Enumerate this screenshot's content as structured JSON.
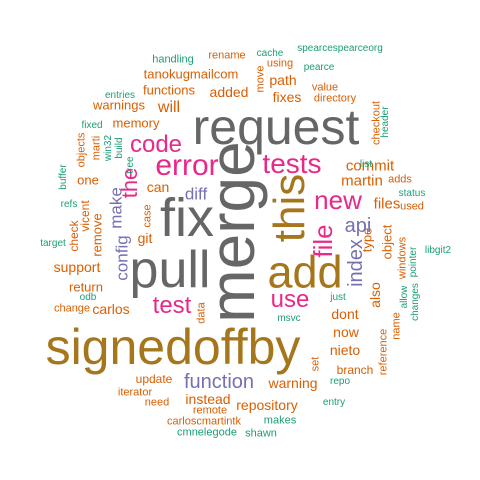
{
  "palette": {
    "green": "#1b9e77",
    "orange": "#d95f02",
    "purple": "#7570b3",
    "pink": "#e7298a",
    "olive": "#66a61e",
    "gold": "#a6761d",
    "gray": "#666666"
  },
  "words": [
    {
      "text": "merge",
      "color": "gray"
    },
    {
      "text": "request",
      "color": "gray"
    },
    {
      "text": "fix",
      "color": "gray"
    },
    {
      "text": "pull",
      "color": "gray"
    },
    {
      "text": "signedoffby",
      "color": "gold"
    },
    {
      "text": "add",
      "color": "gold"
    },
    {
      "text": "this",
      "color": "gold"
    },
    {
      "text": "error",
      "color": "pink"
    },
    {
      "text": "code",
      "color": "pink"
    },
    {
      "text": "tests",
      "color": "pink"
    },
    {
      "text": "test",
      "color": "pink"
    },
    {
      "text": "the",
      "color": "pink"
    },
    {
      "text": "file",
      "color": "pink"
    },
    {
      "text": "new",
      "color": "pink"
    },
    {
      "text": "use",
      "color": "pink"
    },
    {
      "text": "function",
      "color": "purple"
    },
    {
      "text": "diff",
      "color": "purple"
    },
    {
      "text": "api",
      "color": "purple"
    },
    {
      "text": "index",
      "color": "purple"
    },
    {
      "text": "config",
      "color": "purple"
    },
    {
      "text": "make",
      "color": "purple"
    },
    {
      "text": "tanokugmailcom",
      "color": "orange"
    },
    {
      "text": "functions",
      "color": "orange"
    },
    {
      "text": "added",
      "color": "orange"
    },
    {
      "text": "path",
      "color": "orange"
    },
    {
      "text": "fixes",
      "color": "orange"
    },
    {
      "text": "will",
      "color": "orange"
    },
    {
      "text": "memory",
      "color": "orange"
    },
    {
      "text": "warnings",
      "color": "orange"
    },
    {
      "text": "rename",
      "color": "orange"
    },
    {
      "text": "using",
      "color": "orange"
    },
    {
      "text": "move",
      "color": "orange"
    },
    {
      "text": "value",
      "color": "orange"
    },
    {
      "text": "directory",
      "color": "orange"
    },
    {
      "text": "commit",
      "color": "orange"
    },
    {
      "text": "martin",
      "color": "orange"
    },
    {
      "text": "files",
      "color": "orange"
    },
    {
      "text": "can",
      "color": "orange"
    },
    {
      "text": "git",
      "color": "orange"
    },
    {
      "text": "support",
      "color": "orange"
    },
    {
      "text": "return",
      "color": "orange"
    },
    {
      "text": "remove",
      "color": "orange"
    },
    {
      "text": "check",
      "color": "orange"
    },
    {
      "text": "vicent",
      "color": "orange"
    },
    {
      "text": "one",
      "color": "orange"
    },
    {
      "text": "carlos",
      "color": "orange"
    },
    {
      "text": "object",
      "color": "orange"
    },
    {
      "text": "type",
      "color": "orange"
    },
    {
      "text": "dont",
      "color": "orange"
    },
    {
      "text": "now",
      "color": "orange"
    },
    {
      "text": "nieto",
      "color": "orange"
    },
    {
      "text": "also",
      "color": "orange"
    },
    {
      "text": "warning",
      "color": "orange"
    },
    {
      "text": "branch",
      "color": "orange"
    },
    {
      "text": "repository",
      "color": "orange"
    },
    {
      "text": "instead",
      "color": "orange"
    },
    {
      "text": "update",
      "color": "orange"
    },
    {
      "text": "reference",
      "color": "orange"
    },
    {
      "text": "windows",
      "color": "orange"
    },
    {
      "text": "name",
      "color": "orange"
    },
    {
      "text": "used",
      "color": "orange"
    },
    {
      "text": "adds",
      "color": "orange"
    },
    {
      "text": "checkout",
      "color": "orange"
    },
    {
      "text": "marti",
      "color": "orange"
    },
    {
      "text": "objects",
      "color": "orange"
    },
    {
      "text": "change",
      "color": "orange"
    },
    {
      "text": "iterator",
      "color": "orange"
    },
    {
      "text": "need",
      "color": "orange"
    },
    {
      "text": "remote",
      "color": "orange"
    },
    {
      "text": "carloscmartintk",
      "color": "orange"
    },
    {
      "text": "set",
      "color": "orange"
    },
    {
      "text": "data",
      "color": "orange"
    },
    {
      "text": "case",
      "color": "orange"
    },
    {
      "text": "cache",
      "color": "green"
    },
    {
      "text": "spearcespearceorg",
      "color": "green"
    },
    {
      "text": "handling",
      "color": "green"
    },
    {
      "text": "pearce",
      "color": "green"
    },
    {
      "text": "entries",
      "color": "green"
    },
    {
      "text": "fixed",
      "color": "green"
    },
    {
      "text": "build",
      "color": "green"
    },
    {
      "text": "win32",
      "color": "green"
    },
    {
      "text": "tree",
      "color": "green"
    },
    {
      "text": "buffer",
      "color": "green"
    },
    {
      "text": "refs",
      "color": "green"
    },
    {
      "text": "target",
      "color": "green"
    },
    {
      "text": "odb",
      "color": "green"
    },
    {
      "text": "list",
      "color": "green"
    },
    {
      "text": "header",
      "color": "green"
    },
    {
      "text": "status",
      "color": "green"
    },
    {
      "text": "libgit2",
      "color": "green"
    },
    {
      "text": "pointer",
      "color": "green"
    },
    {
      "text": "allow",
      "color": "green"
    },
    {
      "text": "changes",
      "color": "green"
    },
    {
      "text": "just",
      "color": "green"
    },
    {
      "text": "msvc",
      "color": "green"
    },
    {
      "text": "repo",
      "color": "green"
    },
    {
      "text": "entry",
      "color": "green"
    },
    {
      "text": "makes",
      "color": "green"
    },
    {
      "text": "cmnelegode",
      "color": "green"
    },
    {
      "text": "shawn",
      "color": "green"
    }
  ]
}
